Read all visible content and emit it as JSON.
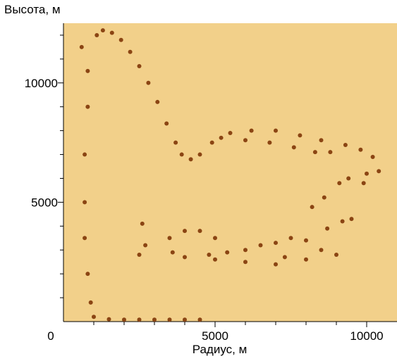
{
  "chart_data": {
    "type": "scatter",
    "title": "",
    "xlabel": "Радиус, м",
    "ylabel": "Высота, м",
    "xlim": [
      0,
      11000
    ],
    "ylim": [
      0,
      12500
    ],
    "x_major_ticks": [
      0,
      5000,
      10000
    ],
    "x_tick_labels": [
      "0",
      "5000",
      "10000"
    ],
    "x_minor_step": 1000,
    "y_major_ticks": [
      5000,
      10000
    ],
    "y_tick_labels": [
      "5000",
      "10000"
    ],
    "y_minor_step": 1000,
    "grid": false,
    "colors": {
      "background": "#f2d08a",
      "points": "#8b4513",
      "axis": "#000000"
    },
    "series": [
      {
        "values": [
          [
            1100,
            12000
          ],
          [
            1300,
            12200
          ],
          [
            1600,
            12100
          ],
          [
            1900,
            11800
          ],
          [
            2200,
            11300
          ],
          [
            2500,
            10700
          ],
          [
            2800,
            10000
          ],
          [
            3100,
            9200
          ],
          [
            3400,
            8300
          ],
          [
            3700,
            7500
          ],
          [
            3900,
            7000
          ],
          [
            4200,
            6800
          ],
          [
            4500,
            7000
          ],
          [
            4900,
            7500
          ],
          [
            5500,
            7900
          ],
          [
            6200,
            8000
          ],
          [
            7000,
            8000
          ],
          [
            7800,
            7800
          ],
          [
            8500,
            7600
          ],
          [
            9300,
            7400
          ],
          [
            9800,
            7200
          ],
          [
            10200,
            6900
          ],
          [
            10400,
            6300
          ],
          [
            10000,
            6200
          ],
          [
            9400,
            6000
          ],
          [
            9100,
            5800
          ],
          [
            5200,
            7700
          ],
          [
            6000,
            7600
          ],
          [
            6800,
            7500
          ],
          [
            7600,
            7300
          ],
          [
            8300,
            7100
          ],
          [
            8800,
            7100
          ],
          [
            600,
            11500
          ],
          [
            800,
            10500
          ],
          [
            800,
            9000
          ],
          [
            700,
            7000
          ],
          [
            700,
            5000
          ],
          [
            700,
            3500
          ],
          [
            800,
            2000
          ],
          [
            900,
            800
          ],
          [
            1000,
            200
          ],
          [
            1500,
            100
          ],
          [
            2000,
            80
          ],
          [
            2500,
            80
          ],
          [
            3000,
            80
          ],
          [
            3500,
            80
          ],
          [
            4000,
            80
          ],
          [
            4500,
            80
          ],
          [
            2600,
            4100
          ],
          [
            2700,
            3200
          ],
          [
            2500,
            2800
          ],
          [
            3500,
            3500
          ],
          [
            4000,
            3800
          ],
          [
            4500,
            3800
          ],
          [
            5000,
            3500
          ],
          [
            5400,
            2900
          ],
          [
            6000,
            3000
          ],
          [
            6500,
            3200
          ],
          [
            7000,
            3300
          ],
          [
            7500,
            3500
          ],
          [
            8000,
            3400
          ],
          [
            8500,
            3000
          ],
          [
            9000,
            2800
          ],
          [
            8700,
            3900
          ],
          [
            9200,
            4200
          ],
          [
            9500,
            4300
          ],
          [
            8200,
            4800
          ],
          [
            4000,
            2700
          ],
          [
            5000,
            2600
          ],
          [
            6000,
            2500
          ],
          [
            7000,
            2400
          ],
          [
            8000,
            2600
          ],
          [
            3600,
            2900
          ],
          [
            4800,
            2800
          ],
          [
            7300,
            2700
          ],
          [
            8600,
            5200
          ],
          [
            9900,
            5800
          ]
        ]
      }
    ]
  }
}
